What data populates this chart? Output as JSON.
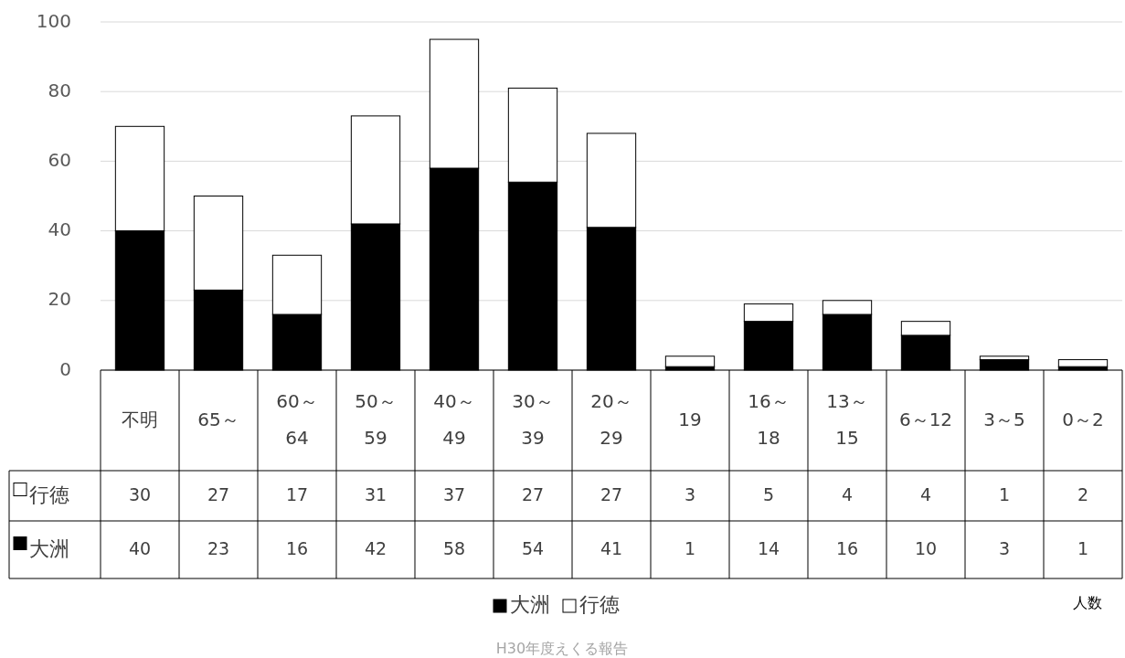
{
  "chart_data": {
    "type": "bar",
    "stacked": true,
    "categories": [
      "不明",
      "65～",
      "60～64",
      "50～59",
      "40～49",
      "30～39",
      "20～29",
      "19",
      "16～18",
      "13～15",
      "6～12",
      "3～5",
      "0～2"
    ],
    "series": [
      {
        "name": "大洲",
        "color": "#000000",
        "values": [
          40,
          23,
          16,
          42,
          58,
          54,
          41,
          1,
          14,
          16,
          10,
          3,
          1
        ]
      },
      {
        "name": "行徳",
        "color": "#ffffff",
        "values": [
          30,
          27,
          17,
          31,
          37,
          27,
          27,
          3,
          5,
          4,
          4,
          1,
          2
        ]
      }
    ],
    "ylim": [
      0,
      100
    ],
    "yticks": [
      0,
      20,
      40,
      60,
      80,
      100
    ],
    "grid": "y",
    "legend": "bottom",
    "data_labels": true,
    "annotations": [
      "人数",
      "H30年度えくる報告"
    ]
  }
}
